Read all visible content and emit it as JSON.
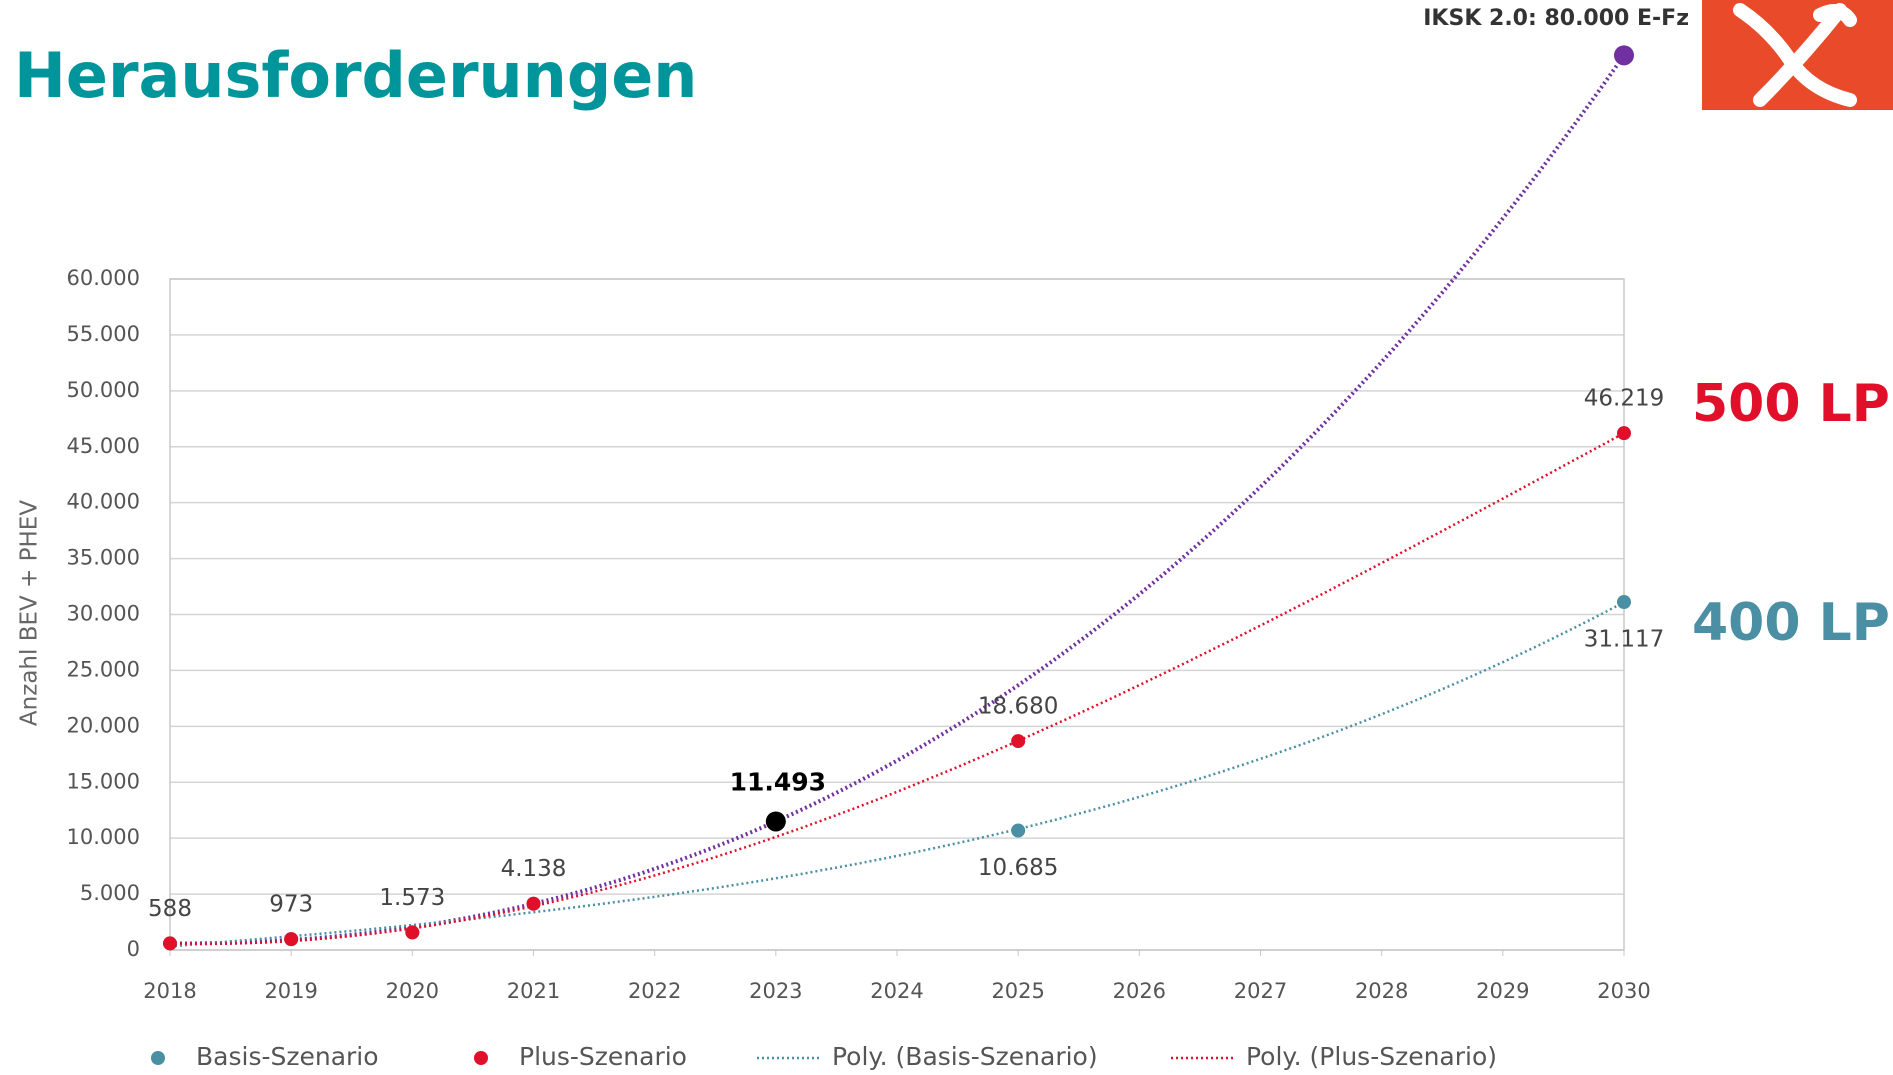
{
  "chart_data": {
    "type": "scatter",
    "title": "Herausforderungen",
    "y_label": "Anzahl BEV + PHEV",
    "xlim": [
      2018,
      2030
    ],
    "xticks": [
      2018,
      2019,
      2020,
      2021,
      2022,
      2023,
      2024,
      2025,
      2026,
      2027,
      2028,
      2029,
      2030
    ],
    "ylim": [
      0,
      60000
    ],
    "yticks": [
      0,
      {
        "value": 5000,
        "label": "5.000"
      },
      {
        "value": 10000,
        "label": "10.000"
      },
      {
        "value": 15000,
        "label": "15.000"
      },
      {
        "value": 20000,
        "label": "20.000"
      },
      {
        "value": 25000,
        "label": "25.000"
      },
      {
        "value": 30000,
        "label": "30.000"
      },
      {
        "value": 35000,
        "label": "35.000"
      },
      {
        "value": 40000,
        "label": "40.000"
      },
      {
        "value": 45000,
        "label": "45.000"
      },
      {
        "value": 50000,
        "label": "50.000"
      },
      {
        "value": 55000,
        "label": "55.000"
      },
      {
        "value": 60000,
        "label": "60.000"
      }
    ],
    "grid": true,
    "series": [
      {
        "name": "Basis-Szenario",
        "trendline_name": "Poly. (Basis-Szenario)",
        "color": "#4a8fa3",
        "x": [
          2018,
          2019,
          2020,
          2021,
          2025,
          2030
        ],
        "values": [
          588,
          973,
          1573,
          4138,
          10685,
          31117
        ],
        "value_labels": [
          null,
          null,
          null,
          null,
          "10.685",
          "31.117"
        ],
        "label_side": "below"
      },
      {
        "name": "Plus-Szenario",
        "trendline_name": "Poly. (Plus-Szenario)",
        "color": "#e0102a",
        "x": [
          2018,
          2019,
          2020,
          2021,
          2025,
          2030
        ],
        "values": [
          588,
          973,
          1573,
          4138,
          18680,
          46219
        ],
        "value_labels": [
          "588",
          "973",
          "1.573",
          "4.138",
          "18.680",
          "46.219"
        ],
        "label_side": "above"
      }
    ],
    "annotations": [
      {
        "text": "11.493",
        "x": 2023,
        "y": 11493,
        "color": "#000000"
      },
      {
        "text": "IKSK 2.0: 80.000 E-Fz",
        "x": 2030,
        "y": 80000,
        "color": "#7030a0"
      }
    ],
    "side_labels": [
      {
        "text": "500 LP",
        "color": "#e0102a"
      },
      {
        "text": "400 LP",
        "color": "#4a8fa3"
      }
    ]
  }
}
